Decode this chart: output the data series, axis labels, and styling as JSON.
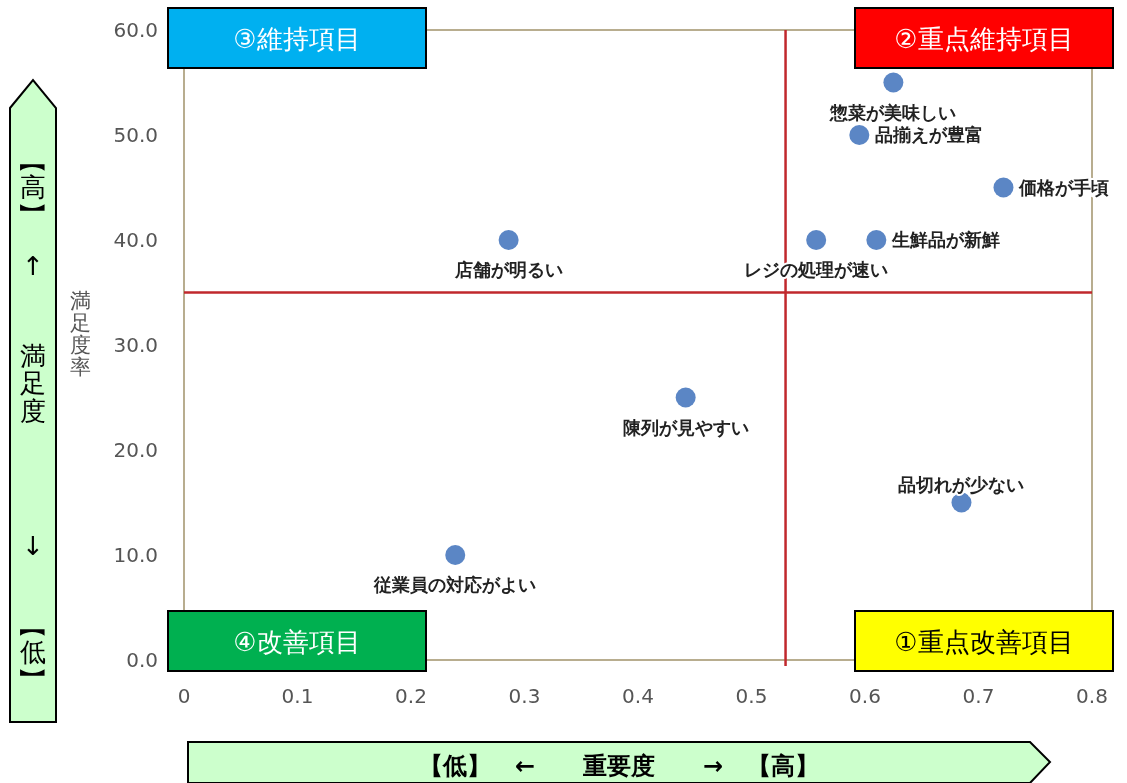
{
  "chart_data": {
    "type": "scatter",
    "ylabel": "満足度率",
    "xlabel": "【低】　←　　重要度　　→　【高】",
    "x": [
      0.625,
      0.595,
      0.722,
      0.61,
      0.557,
      0.286,
      0.442,
      0.685,
      0.239
    ],
    "values": [
      55,
      50,
      45,
      40,
      40,
      40,
      25,
      15,
      10
    ],
    "color": "#5b86c5",
    "marker": "circle",
    "xlim": [
      0,
      0.8
    ],
    "ylim": [
      0,
      60
    ],
    "xticks": [
      0,
      0.1,
      0.2,
      0.3,
      0.4,
      0.5,
      0.6,
      0.7,
      0.8
    ],
    "yticks": [
      {
        "value": 0,
        "label": "0.0"
      },
      {
        "value": 10,
        "label": "10.0"
      },
      {
        "value": 20,
        "label": "20.0"
      },
      {
        "value": 30,
        "label": "30.0"
      },
      {
        "value": 40,
        "label": "40.0"
      },
      {
        "value": 50,
        "label": "50.0"
      },
      {
        "value": 60,
        "label": "60.0"
      }
    ],
    "grid": false,
    "legend": false,
    "ref_lines": [
      {
        "axis": "x",
        "value": 0.53,
        "color": "#c0282d"
      },
      {
        "axis": "y",
        "value": 35,
        "color": "#c0282d"
      }
    ],
    "annotations": [
      "③維持項目",
      "②重点維持項目",
      "④改善項目",
      "①重点改善項目",
      "【高】",
      "↑",
      "満足度",
      "↓",
      "【低】",
      {
        "text": "惣菜が美味しい",
        "x": 0.625,
        "y": 55
      },
      {
        "text": "品揃えが豊富",
        "x": 0.595,
        "y": 50
      },
      {
        "text": "価格が手頃",
        "x": 0.722,
        "y": 45
      },
      {
        "text": "生鮮品が新鮮",
        "x": 0.61,
        "y": 40
      },
      {
        "text": "レジの処理が速い",
        "x": 0.557,
        "y": 40
      },
      {
        "text": "店舗が明るい",
        "x": 0.286,
        "y": 40
      },
      {
        "text": "陳列が見やすい",
        "x": 0.442,
        "y": 25
      },
      {
        "text": "品切れが少ない",
        "x": 0.685,
        "y": 15
      },
      {
        "text": "従業員の対応がよい",
        "x": 0.239,
        "y": 10
      }
    ]
  }
}
